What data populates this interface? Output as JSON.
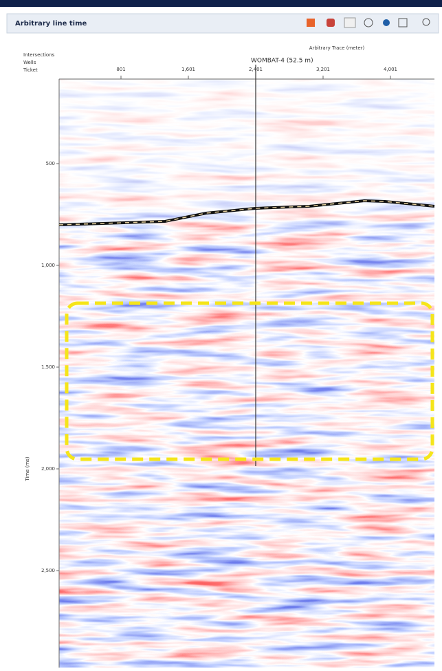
{
  "panel": {
    "title": "Arbitrary line time"
  },
  "header_rows": [
    "Intersections",
    "Wells",
    "Ticket"
  ],
  "top_axis": {
    "label": "Arbitrary Trace (meter)",
    "ticks": [
      "801",
      "1,601",
      "2,401",
      "3,201",
      "4,001"
    ]
  },
  "well": {
    "label": "WOMBAT-4 (52.5 m)"
  },
  "left_axis": {
    "label": "Time (ms)",
    "ticks": [
      "500",
      "1,000",
      "1,500",
      "2,000",
      "2,500"
    ]
  }
}
